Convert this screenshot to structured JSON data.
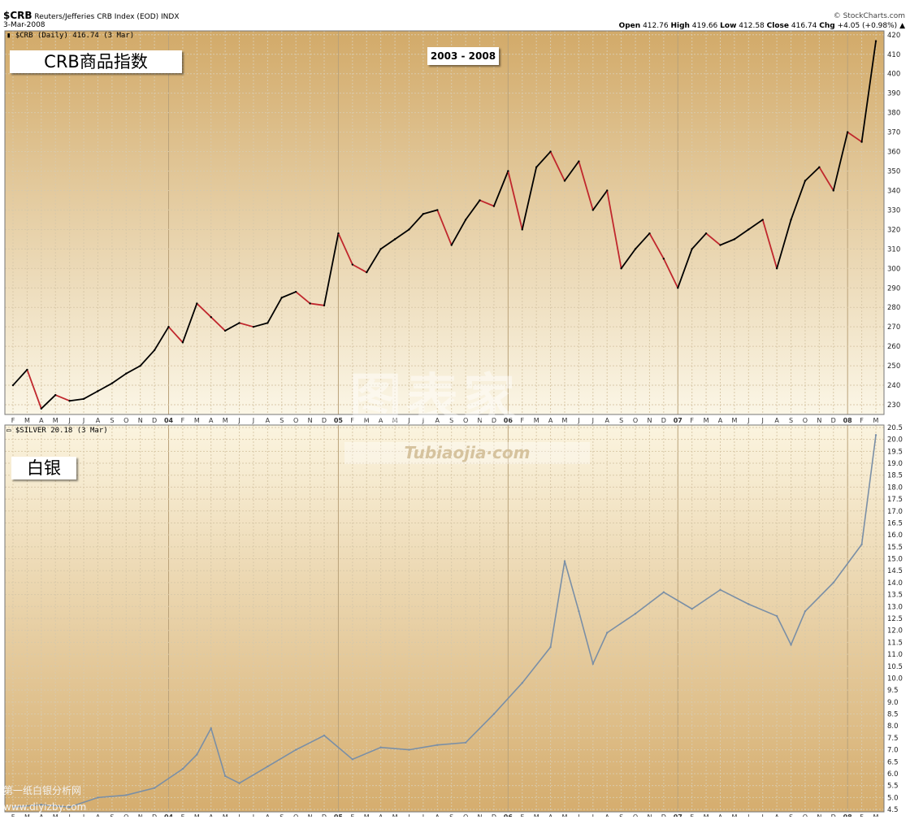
{
  "header": {
    "ticker": "$CRB",
    "name": "Reuters/Jefferies CRB Index (EOD) INDX",
    "date": "3-Mar-2008",
    "source": "© StockCharts.com",
    "open_label": "Open",
    "open": "412.76",
    "high_label": "High",
    "high": "419.66",
    "low_label": "Low",
    "low": "412.58",
    "close_label": "Close",
    "close": "416.74",
    "chg_label": "Chg",
    "chg": "+4.05 (+0.98%)"
  },
  "top_panel": {
    "legend": "$CRB (Daily) 416.74 (3 Mar)",
    "label_cn": "CRB商品指数",
    "range_label": "2003 - 2008"
  },
  "bottom_panel": {
    "legend": "$SILVER 20.18 (3 Mar)",
    "label_cn": "白银"
  },
  "watermark": {
    "cn": "图表家",
    "en": "Tubiaojia·com",
    "site_cn": "第一纸白银分析网",
    "site_url": "www.diyizby.com"
  },
  "colors": {
    "gold_dark": "#d4aa6a",
    "gold_light": "#f7efd6",
    "crb_up": "#000000",
    "crb_down": "#c0272d",
    "silver_line": "#7a8fa6"
  },
  "chart_data": [
    {
      "type": "line",
      "title": "$CRB (Daily) 416.74 (3 Mar)",
      "ylim": [
        225,
        422
      ],
      "yticks": [
        230,
        240,
        250,
        260,
        270,
        280,
        290,
        300,
        310,
        320,
        330,
        340,
        350,
        360,
        370,
        380,
        390,
        400,
        410,
        420
      ],
      "x_labels": [
        "F",
        "M",
        "A",
        "M",
        "J",
        "J",
        "A",
        "S",
        "O",
        "N",
        "D",
        "04",
        "F",
        "M",
        "A",
        "M",
        "J",
        "J",
        "A",
        "S",
        "O",
        "N",
        "D",
        "05",
        "F",
        "M",
        "A",
        "M",
        "J",
        "J",
        "A",
        "S",
        "O",
        "N",
        "D",
        "06",
        "F",
        "M",
        "A",
        "M",
        "J",
        "J",
        "A",
        "S",
        "O",
        "N",
        "D",
        "07",
        "F",
        "M",
        "A",
        "M",
        "J",
        "J",
        "A",
        "S",
        "O",
        "N",
        "D",
        "08",
        "F",
        "M"
      ],
      "series": [
        {
          "x_index": [
            0,
            1,
            2,
            3,
            4,
            5,
            6,
            7,
            8,
            9,
            10,
            11,
            12,
            13,
            14,
            15,
            16,
            17,
            18,
            19,
            20,
            21,
            22,
            23,
            24,
            25,
            26,
            27,
            28,
            29,
            30,
            31,
            32,
            33,
            34,
            35,
            36,
            37,
            38,
            39,
            40,
            41,
            42,
            43,
            44,
            45,
            46,
            47,
            48,
            49,
            50,
            51,
            52,
            53,
            54,
            55,
            56,
            57,
            58,
            59,
            60,
            61
          ],
          "values": [
            240,
            248,
            228,
            235,
            232,
            233,
            237,
            241,
            246,
            250,
            258,
            270,
            262,
            282,
            275,
            268,
            272,
            270,
            272,
            285,
            288,
            282,
            281,
            318,
            302,
            298,
            310,
            315,
            320,
            328,
            330,
            312,
            325,
            335,
            332,
            350,
            320,
            352,
            360,
            345,
            355,
            330,
            340,
            300,
            310,
            318,
            305,
            290,
            310,
            318,
            312,
            315,
            320,
            325,
            300,
            325,
            345,
            352,
            340,
            370,
            365,
            416.74
          ]
        }
      ]
    },
    {
      "type": "line",
      "title": "$SILVER 20.18 (3 Mar)",
      "ylim": [
        4.4,
        20.6
      ],
      "yticks": [
        4.5,
        5.0,
        5.5,
        6.0,
        6.5,
        7.0,
        7.5,
        8.0,
        8.5,
        9.0,
        9.5,
        10.0,
        10.5,
        11.0,
        11.5,
        12.0,
        12.5,
        13.0,
        13.5,
        14.0,
        14.5,
        15.0,
        15.5,
        16.0,
        16.5,
        17.0,
        17.5,
        18.0,
        18.5,
        19.0,
        19.5,
        20.0,
        20.5
      ],
      "x_labels": [
        "F",
        "M",
        "A",
        "M",
        "J",
        "J",
        "A",
        "S",
        "O",
        "N",
        "D",
        "04",
        "F",
        "M",
        "A",
        "M",
        "J",
        "J",
        "A",
        "S",
        "O",
        "N",
        "D",
        "05",
        "F",
        "M",
        "A",
        "M",
        "J",
        "J",
        "A",
        "S",
        "O",
        "N",
        "D",
        "06",
        "F",
        "M",
        "A",
        "M",
        "J",
        "J",
        "A",
        "S",
        "O",
        "N",
        "D",
        "07",
        "F",
        "M",
        "A",
        "M",
        "J",
        "J",
        "A",
        "S",
        "O",
        "N",
        "D",
        "08",
        "F",
        "M"
      ],
      "series": [
        {
          "x_index": [
            0,
            2,
            4,
            6,
            8,
            10,
            12,
            13,
            14,
            15,
            16,
            18,
            20,
            22,
            24,
            26,
            28,
            30,
            32,
            34,
            36,
            38,
            39,
            40,
            41,
            42,
            44,
            46,
            48,
            50,
            52,
            54,
            55,
            56,
            58,
            60,
            61
          ],
          "values": [
            4.6,
            4.7,
            4.6,
            5.0,
            5.1,
            5.4,
            6.2,
            6.8,
            7.9,
            5.9,
            5.6,
            6.3,
            7.0,
            7.6,
            6.6,
            7.1,
            7.0,
            7.2,
            7.3,
            8.5,
            9.8,
            11.3,
            14.9,
            12.8,
            10.6,
            11.9,
            12.7,
            13.6,
            12.9,
            13.7,
            13.1,
            12.6,
            11.4,
            12.8,
            14.0,
            15.6,
            20.18
          ]
        }
      ]
    }
  ]
}
